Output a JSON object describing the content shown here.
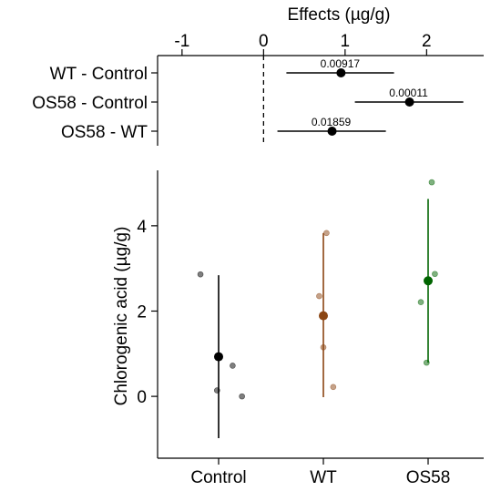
{
  "chart_data": [
    {
      "type": "forest",
      "title": "",
      "xlabel": "Effects (µg/g)",
      "x_ticks": [
        -1,
        0,
        1,
        2
      ],
      "xlim": [
        -1.3,
        2.7
      ],
      "zero_line": "dashed",
      "rows": [
        {
          "label": "WT - Control",
          "estimate": 0.95,
          "ci": [
            0.28,
            1.6
          ],
          "p_label": "0.00917"
        },
        {
          "label": "OS58 - Control",
          "estimate": 1.79,
          "ci": [
            1.12,
            2.45
          ],
          "p_label": "0.00011"
        },
        {
          "label": "OS58 - WT",
          "estimate": 0.84,
          "ci": [
            0.17,
            1.5
          ],
          "p_label": "0.01859"
        }
      ]
    },
    {
      "type": "scatter",
      "title": "",
      "xlabel": "",
      "ylabel": "Chlorogenic acid (µg/g)",
      "y_ticks": [
        0,
        2,
        4
      ],
      "ylim": [
        -1.45,
        5.3
      ],
      "categories": [
        "Control",
        "WT",
        "OS58"
      ],
      "groups": [
        {
          "category": "Control",
          "color": "#000000",
          "mean": 0.93,
          "ci": [
            -0.98,
            2.84
          ],
          "points": [
            {
              "dx": -0.35,
              "y": 2.86
            },
            {
              "dx": -0.03,
              "y": 0.14
            },
            {
              "dx": 0.27,
              "y": 0.72
            },
            {
              "dx": 0.45,
              "y": 0.0
            }
          ]
        },
        {
          "category": "WT",
          "color": "#8B4513",
          "mean": 1.89,
          "ci": [
            -0.02,
            3.83
          ],
          "points": [
            {
              "dx": -0.08,
              "y": 2.35
            },
            {
              "dx": 0.06,
              "y": 3.83
            },
            {
              "dx": 0.0,
              "y": 1.15
            },
            {
              "dx": 0.19,
              "y": 0.22
            }
          ]
        },
        {
          "category": "OS58",
          "color": "#006400",
          "mean": 2.71,
          "ci": [
            0.79,
            4.63
          ],
          "points": [
            {
              "dx": -0.14,
              "y": 2.21
            },
            {
              "dx": -0.03,
              "y": 0.79
            },
            {
              "dx": 0.07,
              "y": 5.02
            },
            {
              "dx": 0.13,
              "y": 2.87
            }
          ]
        }
      ]
    }
  ]
}
